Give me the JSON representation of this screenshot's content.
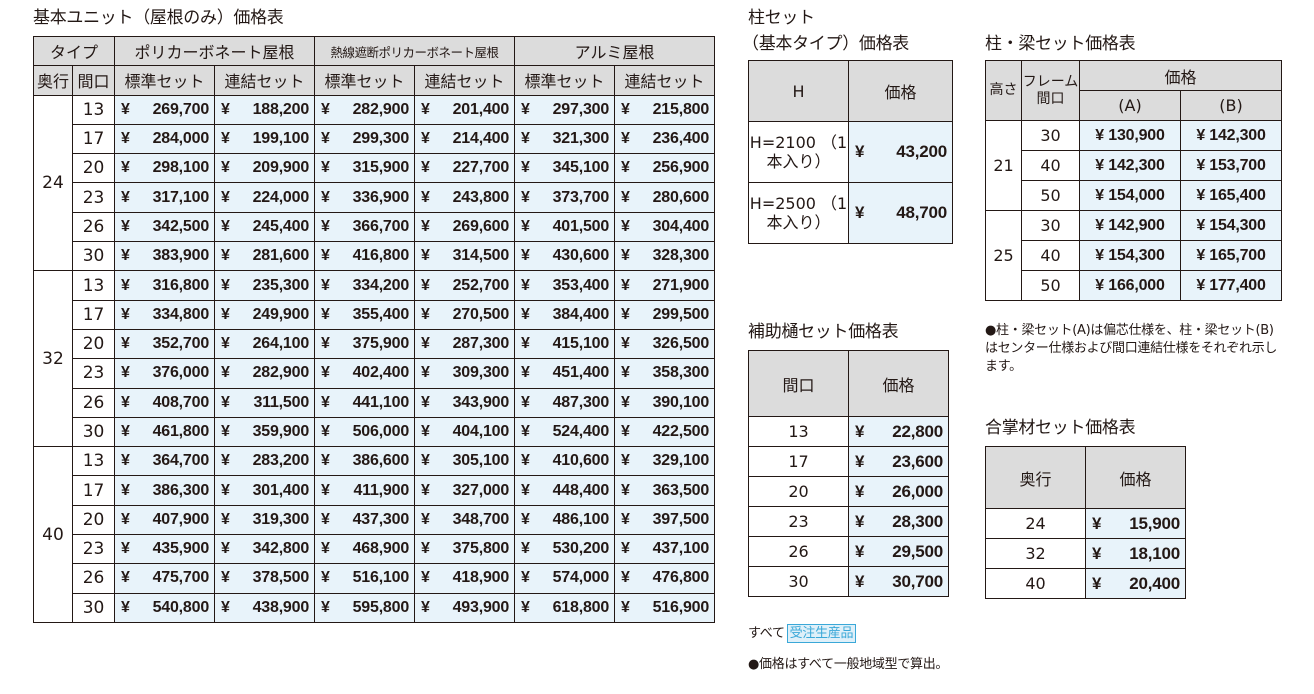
{
  "main": {
    "title": "基本ユニット（屋根のみ）価格表",
    "header_type": "タイプ",
    "roof_types": [
      "ポリカーボネート屋根",
      "熱線遮断ポリカーボネート屋根",
      "アルミ屋根"
    ],
    "col_depth": "奥行",
    "col_width": "間口",
    "set_standard": "標準セット",
    "set_linked": "連結セット",
    "currency": "¥",
    "groups": [
      {
        "depth": "24",
        "rows": [
          {
            "width": "13",
            "prices": [
              "269,700",
              "188,200",
              "282,900",
              "201,400",
              "297,300",
              "215,800"
            ]
          },
          {
            "width": "17",
            "prices": [
              "284,000",
              "199,100",
              "299,300",
              "214,400",
              "321,300",
              "236,400"
            ]
          },
          {
            "width": "20",
            "prices": [
              "298,100",
              "209,900",
              "315,900",
              "227,700",
              "345,100",
              "256,900"
            ]
          },
          {
            "width": "23",
            "prices": [
              "317,100",
              "224,000",
              "336,900",
              "243,800",
              "373,700",
              "280,600"
            ]
          },
          {
            "width": "26",
            "prices": [
              "342,500",
              "245,400",
              "366,700",
              "269,600",
              "401,500",
              "304,400"
            ]
          },
          {
            "width": "30",
            "prices": [
              "383,900",
              "281,600",
              "416,800",
              "314,500",
              "430,600",
              "328,300"
            ]
          }
        ]
      },
      {
        "depth": "32",
        "rows": [
          {
            "width": "13",
            "prices": [
              "316,800",
              "235,300",
              "334,200",
              "252,700",
              "353,400",
              "271,900"
            ]
          },
          {
            "width": "17",
            "prices": [
              "334,800",
              "249,900",
              "355,400",
              "270,500",
              "384,400",
              "299,500"
            ]
          },
          {
            "width": "20",
            "prices": [
              "352,700",
              "264,100",
              "375,900",
              "287,300",
              "415,100",
              "326,500"
            ]
          },
          {
            "width": "23",
            "prices": [
              "376,000",
              "282,900",
              "402,400",
              "309,300",
              "451,400",
              "358,300"
            ]
          },
          {
            "width": "26",
            "prices": [
              "408,700",
              "311,500",
              "441,100",
              "343,900",
              "487,300",
              "390,100"
            ]
          },
          {
            "width": "30",
            "prices": [
              "461,800",
              "359,900",
              "506,000",
              "404,100",
              "524,400",
              "422,500"
            ]
          }
        ]
      },
      {
        "depth": "40",
        "rows": [
          {
            "width": "13",
            "prices": [
              "364,700",
              "283,200",
              "386,600",
              "305,100",
              "410,600",
              "329,100"
            ]
          },
          {
            "width": "17",
            "prices": [
              "386,300",
              "301,400",
              "411,900",
              "327,000",
              "448,400",
              "363,500"
            ]
          },
          {
            "width": "20",
            "prices": [
              "407,900",
              "319,300",
              "437,300",
              "348,700",
              "486,100",
              "397,500"
            ]
          },
          {
            "width": "23",
            "prices": [
              "435,900",
              "342,800",
              "468,900",
              "375,800",
              "530,200",
              "437,100"
            ]
          },
          {
            "width": "26",
            "prices": [
              "475,700",
              "378,500",
              "516,100",
              "418,900",
              "574,000",
              "476,800"
            ]
          },
          {
            "width": "30",
            "prices": [
              "540,800",
              "438,900",
              "595,800",
              "493,900",
              "618,800",
              "516,900"
            ]
          }
        ]
      }
    ]
  },
  "post": {
    "title_line1": "柱セット",
    "title_line2": "（基本タイプ）価格表",
    "col_h": "H",
    "col_price": "価格",
    "rows": [
      {
        "label": "H=2100 （1本入り）",
        "price": "43,200"
      },
      {
        "label": "H=2500 （1本入り）",
        "price": "48,700"
      }
    ]
  },
  "beam": {
    "title": "柱・梁セット価格表",
    "col_height": "高さ",
    "col_frame": "フレーム 間口",
    "col_price": "価格",
    "col_a": "(A)",
    "col_b": "(B)",
    "groups": [
      {
        "height": "21",
        "rows": [
          {
            "frame": "30",
            "a": "¥ 130,900",
            "b": "¥ 142,300"
          },
          {
            "frame": "40",
            "a": "¥ 142,300",
            "b": "¥ 153,700"
          },
          {
            "frame": "50",
            "a": "¥ 154,000",
            "b": "¥ 165,400"
          }
        ]
      },
      {
        "height": "25",
        "rows": [
          {
            "frame": "30",
            "a": "¥ 142,900",
            "b": "¥ 154,300"
          },
          {
            "frame": "40",
            "a": "¥ 154,300",
            "b": "¥ 165,700"
          },
          {
            "frame": "50",
            "a": "¥ 166,000",
            "b": "¥ 177,400"
          }
        ]
      }
    ],
    "note": "●柱・梁セット(A)は偏芯仕様を、柱・梁セット(B)はセンター仕様および間口連結仕様をそれぞれ示します。"
  },
  "gutter": {
    "title": "補助樋セット価格表",
    "col_width": "間口",
    "col_price": "価格",
    "rows": [
      {
        "width": "13",
        "price": "22,800"
      },
      {
        "width": "17",
        "price": "23,600"
      },
      {
        "width": "20",
        "price": "26,000"
      },
      {
        "width": "23",
        "price": "28,300"
      },
      {
        "width": "26",
        "price": "29,500"
      },
      {
        "width": "30",
        "price": "30,700"
      }
    ]
  },
  "gassho": {
    "title": "合掌材セット価格表",
    "col_depth": "奥行",
    "col_price": "価格",
    "rows": [
      {
        "depth": "24",
        "price": "15,900"
      },
      {
        "depth": "32",
        "price": "18,100"
      },
      {
        "depth": "40",
        "price": "20,400"
      }
    ]
  },
  "footer": {
    "all_label": "すべて",
    "badge": "受注生産品",
    "note": "●価格はすべて一般地域型で算出。"
  },
  "colors": {
    "price_cell": "#e8f3fa",
    "header_cell": "#dcdcdc",
    "badge": "#3aa8d8"
  }
}
